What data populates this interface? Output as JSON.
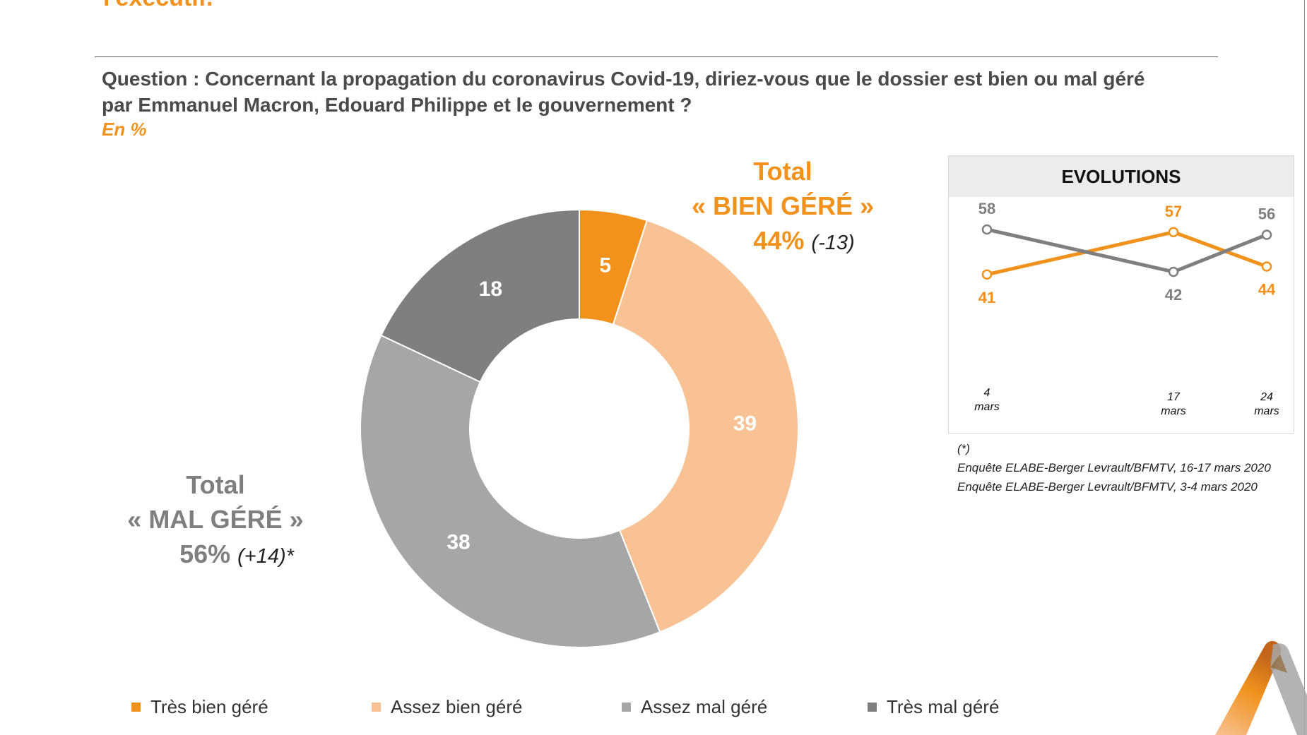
{
  "header": {
    "title_fragment": "l'exécutif.",
    "question": "Question : Concernant la propagation du coronavirus Covid-19, diriez-vous que le dossier est bien ou mal géré par Emmanuel Macron, Edouard Philippe et le gouvernement ?",
    "unit": "En %"
  },
  "chart_data": [
    {
      "type": "pie",
      "categories": [
        "Très bien géré",
        "Assez bien géré",
        "Assez mal géré",
        "Très mal géré"
      ],
      "values": [
        5,
        39,
        38,
        18
      ],
      "colors": [
        "#f0921c",
        "#f8c294",
        "#a6a6a6",
        "#7f7f7f"
      ],
      "legend_position": "bottom"
    },
    {
      "type": "line",
      "title": "EVOLUTIONS",
      "x": [
        "4 mars",
        "17 mars",
        "24 mars"
      ],
      "series": [
        {
          "color": "#f0921c",
          "values": [
            41,
            57,
            44
          ]
        },
        {
          "color": "#7f7f7f",
          "values": [
            58,
            42,
            56
          ]
        }
      ]
    }
  ],
  "totals": {
    "good": {
      "l1": "Total",
      "l2": "« BIEN GÉRÉ »",
      "pct": "44%",
      "delta": "(-13)"
    },
    "bad": {
      "l1": "Total",
      "l2": "« MAL GÉRÉ »",
      "pct": "56%",
      "delta": "(+14)*"
    }
  },
  "evolutions": {
    "dates": [
      [
        "4",
        "mars"
      ],
      [
        "17",
        "mars"
      ],
      [
        "24",
        "mars"
      ]
    ]
  },
  "notes": {
    "star": "(*)",
    "line1": "Enquête ELABE-Berger Levrault/BFMTV, 16-17 mars 2020",
    "line2": "Enquête ELABE-Berger Levrault/BFMTV, 3-4 mars 2020"
  }
}
